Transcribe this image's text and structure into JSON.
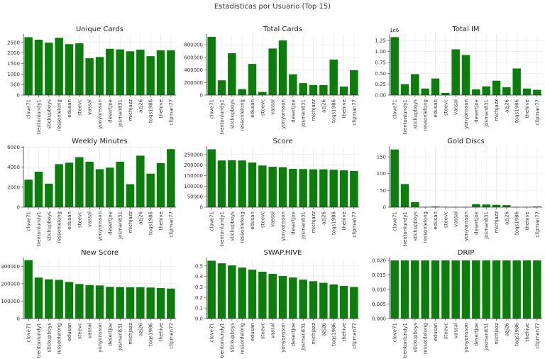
{
  "figure": {
    "title": "Estadísticas por Usuario (Top 15)",
    "bar_color": "#0a7d0a"
  },
  "chart_data": [
    {
      "type": "bar",
      "title": "Unique Cards",
      "categories": [
        "clove71",
        "trentonlundy1",
        "stickupboys",
        "ressonlelong",
        "edusan",
        "steevc",
        "vassal",
        "yonyonsson",
        "desertjoe",
        "josman831",
        "michjazz",
        "azj26",
        "toqs1986",
        "thehive",
        "clipman77"
      ],
      "values": [
        2750,
        2630,
        2490,
        2720,
        2420,
        2460,
        1750,
        1810,
        2200,
        2170,
        2080,
        2160,
        1850,
        2130,
        2130
      ],
      "ylim": [
        0,
        2900
      ],
      "yticks": [
        0,
        500,
        1000,
        1500,
        2000,
        2500
      ],
      "ytick_labels": [
        "0",
        "500",
        "1000",
        "1500",
        "2000",
        "2500"
      ],
      "grid": true
    },
    {
      "type": "bar",
      "title": "Total Cards",
      "categories": [
        "clove71",
        "trentonlundy1",
        "stickupboys",
        "ressonlelong",
        "edusan",
        "steevc",
        "vassal",
        "yonyonsson",
        "desertjoe",
        "josman831",
        "michjazz",
        "azj26",
        "toqs1986",
        "thehive",
        "clipman77"
      ],
      "values": [
        925000,
        235000,
        665000,
        95000,
        495000,
        50000,
        740000,
        870000,
        330000,
        190000,
        160000,
        160000,
        565000,
        135000,
        395000
      ],
      "ylim": [
        0,
        970000
      ],
      "yticks": [
        0,
        200000,
        400000,
        600000,
        800000
      ],
      "ytick_labels": [
        "0",
        "200000",
        "400000",
        "600000",
        "800000"
      ],
      "grid": true
    },
    {
      "type": "bar",
      "title": "Total IM",
      "scale_label": "1e6",
      "categories": [
        "clove71",
        "trentonlundy1",
        "stickupboys",
        "ressonlelong",
        "edusan",
        "steevc",
        "vassal",
        "yonyonsson",
        "desertjoe",
        "josman831",
        "michjazz",
        "azj26",
        "toqs1986",
        "thehive",
        "clipman77"
      ],
      "values": [
        1330000,
        250000,
        480000,
        150000,
        380000,
        50000,
        1050000,
        920000,
        130000,
        200000,
        330000,
        180000,
        610000,
        150000,
        120000
      ],
      "ylim": [
        0,
        1400000
      ],
      "yticks": [
        0,
        250000,
        500000,
        750000,
        1000000,
        1250000
      ],
      "ytick_labels": [
        "0.00",
        "0.25",
        "0.50",
        "0.75",
        "1.00",
        "1.25"
      ],
      "grid": true
    },
    {
      "type": "bar",
      "title": "Weekly Minutes",
      "categories": [
        "clove71",
        "trentonlundy1",
        "stickupboys",
        "ressonlelong",
        "edusan",
        "steevc",
        "vassal",
        "yonyonsson",
        "desertjoe",
        "josman831",
        "michjazz",
        "azj26",
        "toqs1986",
        "thehive",
        "clipman77"
      ],
      "values": [
        2750,
        3550,
        2350,
        4300,
        4450,
        5000,
        4550,
        3800,
        3950,
        4550,
        2300,
        5150,
        3350,
        4400,
        5800
      ],
      "ylim": [
        0,
        6100
      ],
      "yticks": [
        0,
        2000,
        4000,
        6000
      ],
      "ytick_labels": [
        "0",
        "2000",
        "4000",
        "6000"
      ],
      "grid": true
    },
    {
      "type": "bar",
      "title": "Score",
      "categories": [
        "clove71",
        "trentonlundy1",
        "stickupboys",
        "ressonlelong",
        "edusan",
        "steevc",
        "vassal",
        "yonyonsson",
        "desertjoe",
        "josman831",
        "michjazz",
        "azj26",
        "toqs1986",
        "thehive",
        "clipman77"
      ],
      "values": [
        275000,
        222000,
        223000,
        222000,
        212000,
        198000,
        192000,
        190000,
        182000,
        181000,
        180000,
        180000,
        178000,
        175000,
        172000
      ],
      "ylim": [
        0,
        290000
      ],
      "yticks": [
        0,
        50000,
        100000,
        150000,
        200000,
        250000
      ],
      "ytick_labels": [
        "0",
        "50000",
        "100000",
        "150000",
        "200000",
        "250000"
      ],
      "grid": true
    },
    {
      "type": "bar",
      "title": "Gold Discs",
      "categories": [
        "clove71",
        "trentonlundy1",
        "stickupboys",
        "ressonlelong",
        "edusan",
        "steevc",
        "vassal",
        "yonyonsson",
        "desertjoe",
        "josman831",
        "michjazz",
        "azj26",
        "toqs1986",
        "thehive",
        "clipman77"
      ],
      "values": [
        172,
        69,
        15,
        1,
        2,
        1,
        1,
        1,
        9,
        8,
        7,
        6,
        1,
        1,
        2
      ],
      "ylim": [
        0,
        182
      ],
      "yticks": [
        0,
        50,
        100,
        150
      ],
      "ytick_labels": [
        "0",
        "50",
        "100",
        "150"
      ],
      "grid": true
    },
    {
      "type": "bar",
      "title": "New Score",
      "categories": [
        "clove71",
        "trentonlundy1",
        "stickupboys",
        "ressonlelong",
        "edusan",
        "steevc",
        "vassal",
        "yonyonsson",
        "desertjoe",
        "josman831",
        "michjazz",
        "azj26",
        "toqs1986",
        "thehive",
        "clipman77"
      ],
      "values": [
        335000,
        235000,
        225000,
        222000,
        210000,
        198000,
        192000,
        190000,
        182000,
        181000,
        180000,
        180000,
        178000,
        175000,
        172000
      ],
      "ylim": [
        0,
        350000
      ],
      "yticks": [
        0,
        100000,
        200000,
        300000
      ],
      "ytick_labels": [
        "0",
        "100000",
        "200000",
        "300000"
      ],
      "grid": true
    },
    {
      "type": "bar",
      "title": "SWAP.HIVE",
      "categories": [
        "clove71",
        "trentonlundy1",
        "stickupboys",
        "ressonlelong",
        "edusan",
        "steevc",
        "vassal",
        "yonyonsson",
        "desertjoe",
        "josman831",
        "michjazz",
        "azj26",
        "toqs1986",
        "thehive",
        "clipman77"
      ],
      "values": [
        0.55,
        0.525,
        0.505,
        0.485,
        0.465,
        0.445,
        0.425,
        0.405,
        0.39,
        0.37,
        0.355,
        0.34,
        0.325,
        0.31,
        0.3
      ],
      "ylim": [
        0,
        0.58
      ],
      "yticks": [
        0,
        0.1,
        0.2,
        0.3,
        0.4,
        0.5
      ],
      "ytick_labels": [
        "0.0",
        "0.1",
        "0.2",
        "0.3",
        "0.4",
        "0.5"
      ],
      "grid": true
    },
    {
      "type": "bar",
      "title": "DRIP",
      "categories": [
        "clove71",
        "trentonlundy1",
        "stickupboys",
        "ressonlelong",
        "edusan",
        "steevc",
        "vassal",
        "yonyonsson",
        "desertjoe",
        "josman831",
        "michjazz",
        "azj26",
        "toqs1986",
        "thehive",
        "clipman77"
      ],
      "values": [
        0.02,
        0.02,
        0.02,
        0.02,
        0.02,
        0.02,
        0.02,
        0.02,
        0.02,
        0.02,
        0.02,
        0.02,
        0.02,
        0.02,
        0.02
      ],
      "ylim": [
        0,
        0.021
      ],
      "yticks": [
        0,
        0.005,
        0.01,
        0.015,
        0.02
      ],
      "ytick_labels": [
        "0.000",
        "0.005",
        "0.010",
        "0.015",
        "0.020"
      ],
      "grid": true
    }
  ]
}
